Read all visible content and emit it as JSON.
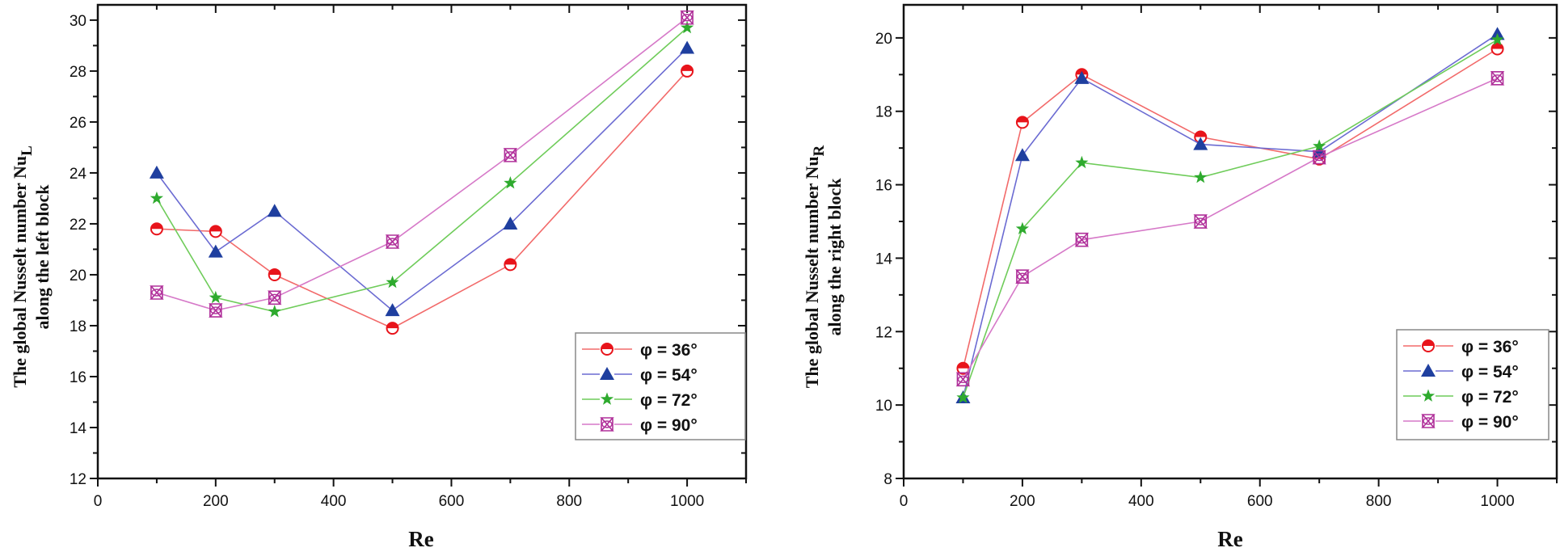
{
  "chart_data": [
    {
      "type": "line",
      "xlabel": "Re",
      "ylabel_main": "The global Nusselt number Nu",
      "ylabel_subscript": "L",
      "ylabel_line2": "along the left block",
      "x": [
        100,
        200,
        300,
        500,
        700,
        1000
      ],
      "xlim": [
        0,
        1100
      ],
      "ylim": [
        12,
        30.6
      ],
      "xticks": [
        0,
        200,
        400,
        600,
        800,
        1000
      ],
      "yticks": [
        12,
        14,
        16,
        18,
        20,
        22,
        24,
        26,
        28,
        30
      ],
      "grid": false,
      "legend": "bottom-right",
      "series": [
        {
          "name": "φ = 36°",
          "marker": "half-filled-circle",
          "line_color": "#f26a6a",
          "marker_color": "#e8141b",
          "values": [
            21.8,
            21.7,
            20.0,
            17.9,
            20.4,
            28.0
          ]
        },
        {
          "name": "φ = 54°",
          "marker": "filled-triangle",
          "line_color": "#6b6bd2",
          "marker_color": "#1f3f9f",
          "values": [
            24.0,
            20.9,
            22.5,
            18.6,
            22.0,
            28.9
          ]
        },
        {
          "name": "φ = 72°",
          "marker": "star",
          "line_color": "#6fcc5a",
          "marker_color": "#2eaa2e",
          "values": [
            23.0,
            19.1,
            18.55,
            19.7,
            23.6,
            29.7
          ]
        },
        {
          "name": "φ = 90°",
          "marker": "crossed-hourglass",
          "line_color": "#d679c8",
          "marker_color": "#b0309a",
          "values": [
            19.3,
            18.6,
            19.1,
            21.3,
            24.7,
            30.1
          ]
        }
      ]
    },
    {
      "type": "line",
      "xlabel": "Re",
      "ylabel_main": "The global Nusselt number Nu",
      "ylabel_subscript": "R",
      "ylabel_line2": "along the right block",
      "x": [
        100,
        200,
        300,
        500,
        700,
        1000
      ],
      "xlim": [
        0,
        1100
      ],
      "ylim": [
        8,
        20.9
      ],
      "xticks": [
        0,
        200,
        400,
        600,
        800,
        1000
      ],
      "yticks": [
        8,
        10,
        12,
        14,
        16,
        18,
        20
      ],
      "grid": false,
      "legend": "bottom-right",
      "series": [
        {
          "name": "φ = 36°",
          "marker": "half-filled-circle",
          "line_color": "#f26a6a",
          "marker_color": "#e8141b",
          "values": [
            11.0,
            17.7,
            19.0,
            17.3,
            16.7,
            19.7
          ]
        },
        {
          "name": "φ = 54°",
          "marker": "filled-triangle",
          "line_color": "#6b6bd2",
          "marker_color": "#1f3f9f",
          "values": [
            10.2,
            16.8,
            18.9,
            17.1,
            16.9,
            20.1
          ]
        },
        {
          "name": "φ = 72°",
          "marker": "star",
          "line_color": "#6fcc5a",
          "marker_color": "#2eaa2e",
          "values": [
            10.2,
            14.8,
            16.6,
            16.2,
            17.05,
            19.95
          ]
        },
        {
          "name": "φ = 90°",
          "marker": "crossed-hourglass",
          "line_color": "#d679c8",
          "marker_color": "#b0309a",
          "values": [
            10.7,
            13.5,
            14.5,
            15.0,
            16.75,
            18.9
          ]
        }
      ]
    }
  ]
}
